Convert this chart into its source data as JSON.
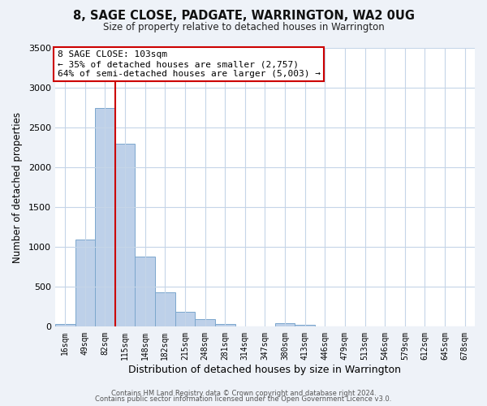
{
  "title": "8, SAGE CLOSE, PADGATE, WARRINGTON, WA2 0UG",
  "subtitle": "Size of property relative to detached houses in Warrington",
  "xlabel": "Distribution of detached houses by size in Warrington",
  "ylabel": "Number of detached properties",
  "footer_line1": "Contains HM Land Registry data © Crown copyright and database right 2024.",
  "footer_line2": "Contains public sector information licensed under the Open Government Licence v3.0.",
  "annotation_line1": "8 SAGE CLOSE: 103sqm",
  "annotation_line2": "← 35% of detached houses are smaller (2,757)",
  "annotation_line3": "64% of semi-detached houses are larger (5,003) →",
  "bar_labels": [
    "16sqm",
    "49sqm",
    "82sqm",
    "115sqm",
    "148sqm",
    "182sqm",
    "215sqm",
    "248sqm",
    "281sqm",
    "314sqm",
    "347sqm",
    "380sqm",
    "413sqm",
    "446sqm",
    "479sqm",
    "513sqm",
    "546sqm",
    "579sqm",
    "612sqm",
    "645sqm",
    "678sqm"
  ],
  "bar_values": [
    40,
    1100,
    2750,
    2300,
    880,
    430,
    185,
    95,
    35,
    5,
    0,
    50,
    30,
    5,
    0,
    0,
    0,
    0,
    0,
    0,
    0
  ],
  "bar_color": "#bdd0e9",
  "bar_edge_color": "#7ba7cd",
  "vline_color": "#cc0000",
  "ylim": [
    0,
    3500
  ],
  "yticks": [
    0,
    500,
    1000,
    1500,
    2000,
    2500,
    3000,
    3500
  ],
  "bg_color": "#eef2f8",
  "plot_bg_color": "#ffffff",
  "annotation_box_edge_color": "#cc0000",
  "grid_color": "#c5d5e8"
}
